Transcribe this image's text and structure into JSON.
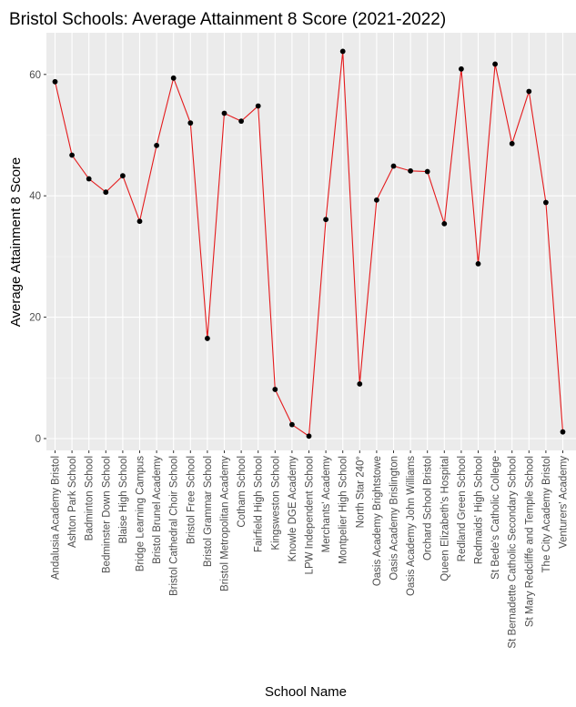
{
  "chart_data": {
    "type": "line",
    "title": "Bristol Schools: Average Attainment 8 Score (2021-2022)",
    "xlabel": "School Name",
    "ylabel": "Average Attainment 8 Score",
    "ylim": [
      -2,
      67
    ],
    "yticks": [
      0,
      20,
      40,
      60
    ],
    "grid": true,
    "line_color": "#e41a1c",
    "point_color": "#000000",
    "panel_background": "#ebebeb",
    "categories": [
      "Andalusia Academy Bristol",
      "Ashton Park School",
      "Badminton School",
      "Bedminster Down School",
      "Blaise High School",
      "Bridge Learning Campus",
      "Bristol Brunel Academy",
      "Bristol Cathedral Choir School",
      "Bristol Free School",
      "Bristol Grammar School",
      "Bristol Metropolitan Academy",
      "Cotham School",
      "Fairfield High School",
      "Kingsweston School",
      "Knowle DGE Academy",
      "LPW Independent School",
      "Merchants' Academy",
      "Montpelier High School",
      "North Star 240°",
      "Oasis Academy Brightstowe",
      "Oasis Academy Brislington",
      "Oasis Academy John Williams",
      "Orchard School Bristol",
      "Queen Elizabeth's Hospital",
      "Redland Green School",
      "Redmaids' High School",
      "St Bede's Catholic College",
      "St Bernadette Catholic Secondary School",
      "St Mary Redcliffe and Temple School",
      "The City Academy Bristol",
      "Venturers' Academy"
    ],
    "values": [
      58.8,
      46.7,
      42.8,
      40.6,
      43.3,
      35.8,
      48.3,
      59.4,
      52.0,
      16.5,
      53.6,
      52.3,
      54.8,
      8.1,
      2.3,
      0.4,
      36.1,
      63.8,
      9.0,
      39.3,
      44.9,
      44.1,
      44.0,
      35.4,
      60.9,
      28.8,
      61.7,
      48.6,
      57.2,
      38.9,
      1.1
    ]
  }
}
